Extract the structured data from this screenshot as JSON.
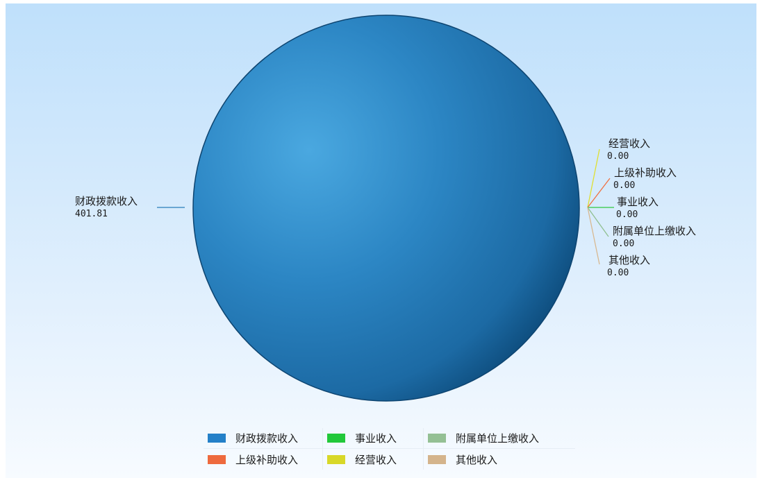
{
  "chart_data": {
    "type": "pie",
    "slices": [
      {
        "label": "财政拨款收入",
        "value": 401.81,
        "display": "401.81",
        "color": "#2980c8"
      },
      {
        "label": "经营收入",
        "value": 0.0,
        "display": "0.00",
        "color": "#e0e030"
      },
      {
        "label": "上级补助收入",
        "value": 0.0,
        "display": "0.00",
        "color": "#f07040"
      },
      {
        "label": "事业收入",
        "value": 0.0,
        "display": "0.00",
        "color": "#30c840"
      },
      {
        "label": "附属单位上缴收入",
        "value": 0.0,
        "display": "0.00",
        "color": "#90c090"
      },
      {
        "label": "其他收入",
        "value": 0.0,
        "display": "0.00",
        "color": "#d8b890"
      }
    ],
    "legend": [
      {
        "label": "财政拨款收入",
        "color": "#2480c8"
      },
      {
        "label": "事业收入",
        "color": "#22c83a"
      },
      {
        "label": "附属单位上缴收入",
        "color": "#94c094"
      },
      {
        "label": "上级补助收入",
        "color": "#ee6a3e"
      },
      {
        "label": "经营收入",
        "color": "#d8d828"
      },
      {
        "label": "其他收入",
        "color": "#d4b48c"
      }
    ],
    "legend_position": "bottom"
  }
}
